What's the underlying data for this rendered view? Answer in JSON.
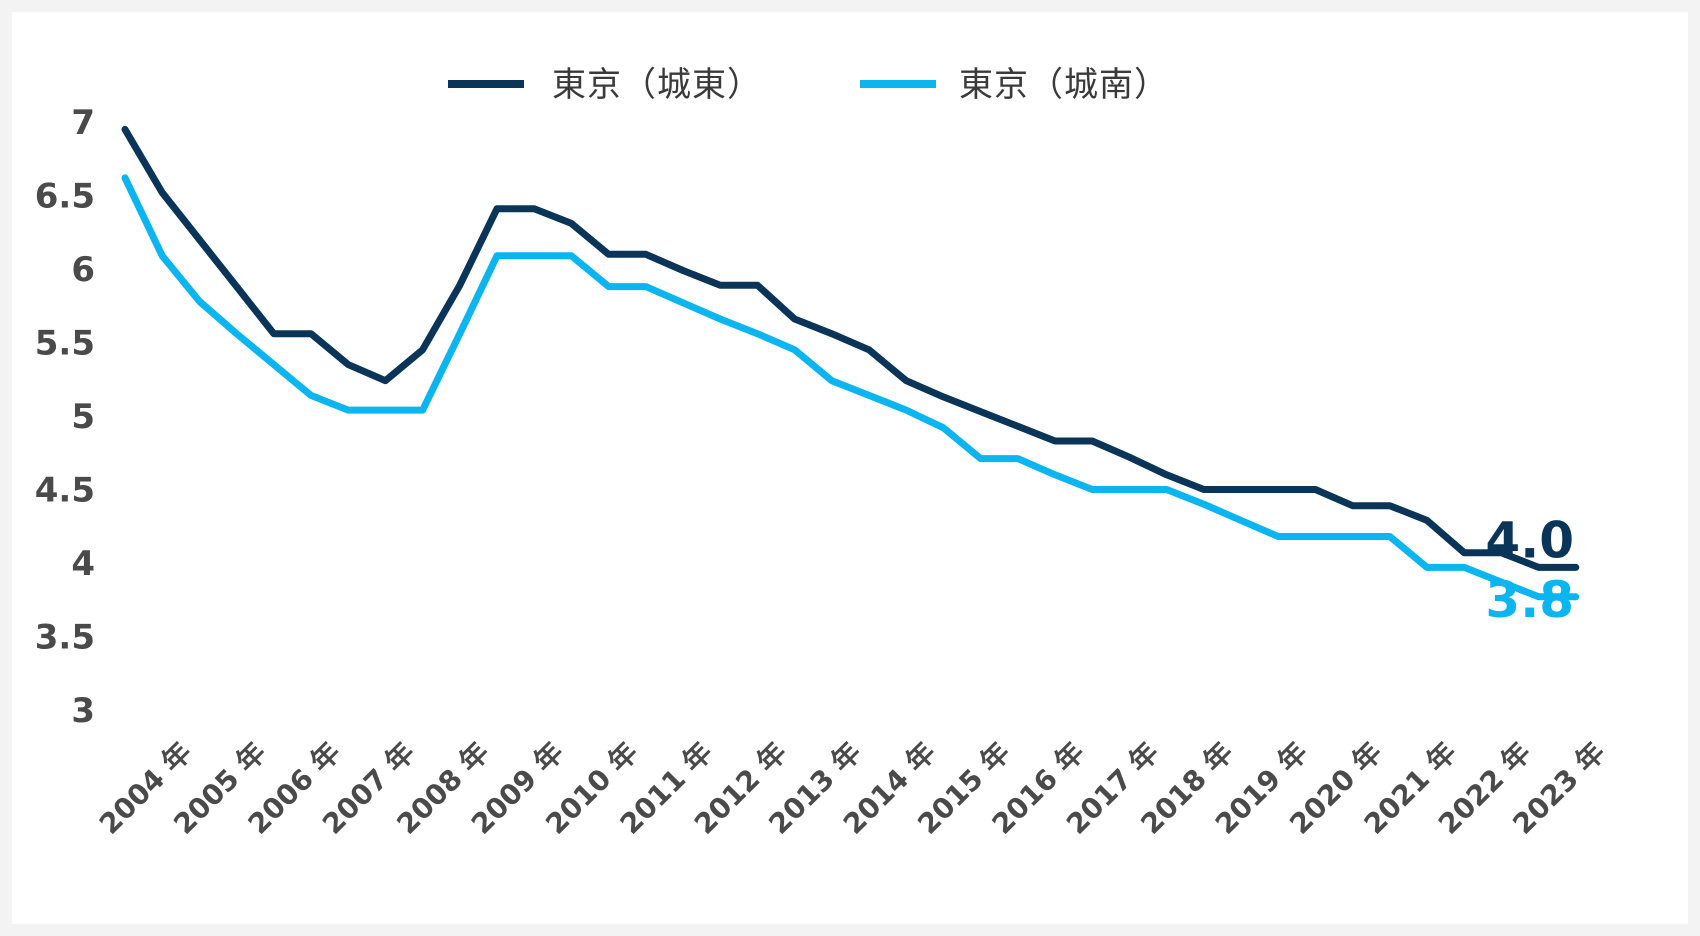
{
  "chart_data": {
    "type": "line",
    "title": "",
    "xlabel": "",
    "ylabel": "",
    "ylim": [
      3,
      7
    ],
    "yticks": [
      "7",
      "6.5",
      "6",
      "5.5",
      "5",
      "4.5",
      "4",
      "3.5",
      "3"
    ],
    "xtick_labels": [
      "2004 年",
      "2005  年",
      "2006 年",
      "2007 年",
      "2008 年",
      "2009 年",
      "2010 年",
      "2011 年",
      "2012 年",
      "2013 年",
      "2014 年",
      "2015 年",
      "2016 年",
      "2017 年",
      "2018 年",
      "2019 年",
      "2020 年",
      "2021 年",
      "2022 年",
      "2023 年"
    ],
    "x": [
      2004.0,
      2004.5,
      2005.0,
      2005.5,
      2006.0,
      2006.5,
      2007.0,
      2007.5,
      2008.0,
      2008.5,
      2009.0,
      2009.5,
      2010.0,
      2010.5,
      2011.0,
      2011.5,
      2012.0,
      2012.5,
      2013.0,
      2013.5,
      2014.0,
      2014.5,
      2015.0,
      2015.5,
      2016.0,
      2016.5,
      2017.0,
      2017.5,
      2018.0,
      2018.5,
      2019.0,
      2019.5,
      2020.0,
      2020.5,
      2021.0,
      2021.5,
      2022.0,
      2022.5,
      2023.0,
      2023.5
    ],
    "series": [
      {
        "name": "東京（城東）",
        "color": "#0b3558",
        "end_label": "4.0",
        "values": [
          6.95,
          6.52,
          6.2,
          5.88,
          5.56,
          5.56,
          5.35,
          5.24,
          5.45,
          5.89,
          6.41,
          6.41,
          6.31,
          6.1,
          6.1,
          5.99,
          5.89,
          5.89,
          5.66,
          5.56,
          5.45,
          5.24,
          5.13,
          5.03,
          4.93,
          4.83,
          4.83,
          4.72,
          4.6,
          4.5,
          4.5,
          4.5,
          4.5,
          4.39,
          4.39,
          4.29,
          4.07,
          4.07,
          3.97,
          3.97
        ]
      },
      {
        "name": "東京（城南）",
        "color": "#0bb5ef",
        "end_label": "3.8",
        "values": [
          6.62,
          6.09,
          5.78,
          5.56,
          5.35,
          5.14,
          5.04,
          5.04,
          5.04,
          5.56,
          6.09,
          6.09,
          6.09,
          5.88,
          5.88,
          5.77,
          5.66,
          5.56,
          5.45,
          5.24,
          5.14,
          5.04,
          4.92,
          4.71,
          4.71,
          4.6,
          4.5,
          4.5,
          4.5,
          4.4,
          4.29,
          4.18,
          4.18,
          4.18,
          4.18,
          3.97,
          3.97,
          3.87,
          3.77,
          3.77
        ]
      }
    ],
    "legend": "top-center",
    "grid": false
  }
}
